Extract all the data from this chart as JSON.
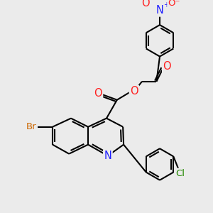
{
  "bg_color": "#ebebeb",
  "bond_color": "#000000",
  "atom_colors": {
    "N": "#2020ff",
    "O": "#ff2020",
    "Br": "#cc6600",
    "Cl": "#228800"
  },
  "bond_lw": 1.5,
  "font_size": 9.5,
  "dpi": 100,
  "figsize": [
    3.0,
    3.0
  ]
}
